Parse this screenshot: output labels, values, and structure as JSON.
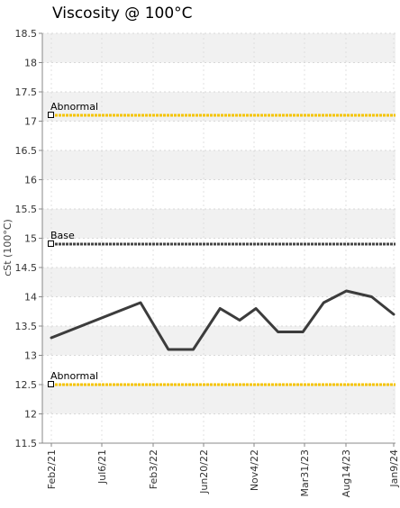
{
  "chart_data": {
    "type": "line",
    "title": "Viscosity @ 100°C",
    "ylabel": "cSt (100°C)",
    "xlabel": "",
    "ylim": [
      11.5,
      18.5
    ],
    "yticks": [
      "11.5",
      "12",
      "12.5",
      "13",
      "13.5",
      "14",
      "14.5",
      "15",
      "15.5",
      "16",
      "16.5",
      "17",
      "17.5",
      "18",
      "18.5"
    ],
    "xticks": [
      "Feb2/21",
      "Jul6/21",
      "Feb3/22",
      "Jun20/22",
      "Nov4/22",
      "Mar31/23",
      "Aug14/23",
      "Jan9/24"
    ],
    "grid": true,
    "x_axis_type": "date",
    "x_range": [
      "2021-02-02",
      "2024-01-09"
    ],
    "series": [
      {
        "values": [
          {
            "x": "2021-02-02",
            "y": 13.3
          },
          {
            "x": "2021-11-08",
            "y": 13.9
          },
          {
            "x": "2022-02-03",
            "y": 13.1
          },
          {
            "x": "2022-04-22",
            "y": 13.1
          },
          {
            "x": "2022-07-15",
            "y": 13.8
          },
          {
            "x": "2022-09-14",
            "y": 13.6
          },
          {
            "x": "2022-11-04",
            "y": 13.8
          },
          {
            "x": "2023-01-12",
            "y": 13.4
          },
          {
            "x": "2023-03-31",
            "y": 13.4
          },
          {
            "x": "2023-06-04",
            "y": 13.9
          },
          {
            "x": "2023-08-14",
            "y": 14.1
          },
          {
            "x": "2023-11-01",
            "y": 14.0
          },
          {
            "x": "2024-01-09",
            "y": 13.7
          }
        ],
        "color": "#3c3c3c"
      }
    ],
    "reference_lines": [
      {
        "label": "Abnormal",
        "y": 17.1,
        "color": "#f5c400"
      },
      {
        "label": "Base",
        "y": 14.9,
        "color": "#444444"
      },
      {
        "label": "Abnormal",
        "y": 12.5,
        "color": "#f5c400"
      }
    ]
  }
}
